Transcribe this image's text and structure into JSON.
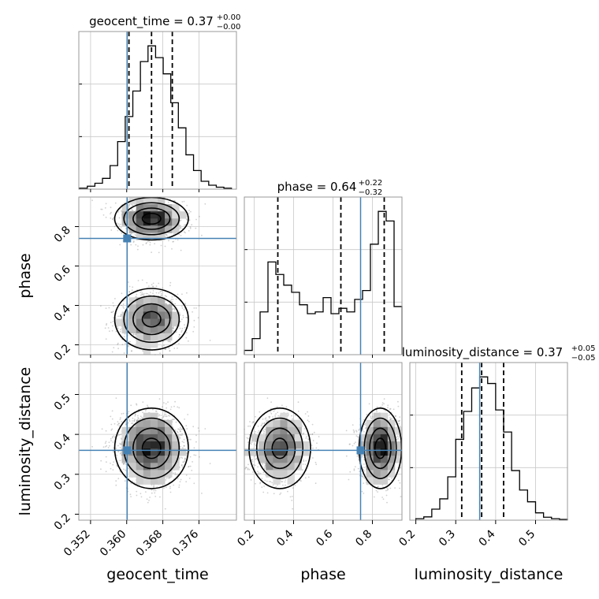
{
  "chart_data": {
    "type": "corner",
    "params": [
      "geocent_time",
      "phase",
      "luminosity_distance"
    ],
    "titles": [
      {
        "name": "geocent_time",
        "eq": " = 0.37",
        "sup": "+0.00",
        "sub": "−0.00"
      },
      {
        "name": "phase",
        "eq": " = 0.64",
        "sup": "+0.22",
        "sub": "−0.32"
      },
      {
        "name": "luminosity_distance",
        "eq": " = 0.37",
        "sup": "+0.05",
        "sub": "−0.05"
      }
    ],
    "truths": [
      0.3601,
      0.74,
      0.36
    ],
    "truth_color": "#4682b4",
    "ranges": [
      [
        0.3494,
        0.3843
      ],
      [
        0.15,
        0.95
      ],
      [
        0.185,
        0.58
      ]
    ],
    "ticks": [
      [
        "0.352",
        "0.360",
        "0.368",
        "0.376"
      ],
      [
        "0.2",
        "0.4",
        "0.6",
        "0.8"
      ],
      [
        "0.2",
        "0.3",
        "0.4",
        "0.5"
      ]
    ],
    "histograms": [
      {
        "bin_edges": [
          0.3496,
          0.35128,
          0.35296,
          0.35464,
          0.35632,
          0.358,
          0.35968,
          0.36136,
          0.36304,
          0.36472,
          0.3664,
          0.36808,
          0.36976,
          0.37144,
          0.37312,
          0.3748,
          0.37648,
          0.37816,
          0.37984,
          0.38152,
          0.3832
        ],
        "counts": [
          2,
          6,
          12,
          22,
          48,
          97,
          148,
          200,
          260,
          292,
          268,
          235,
          176,
          125,
          70,
          38,
          16,
          8,
          4,
          2
        ],
        "quantiles": [
          0.3605,
          0.3655,
          0.3701
        ]
      },
      {
        "bin_edges": [
          0.15,
          0.19,
          0.23,
          0.27,
          0.31,
          0.35,
          0.39,
          0.43,
          0.47,
          0.51,
          0.55,
          0.59,
          0.63,
          0.67,
          0.71,
          0.75,
          0.79,
          0.83,
          0.87,
          0.91,
          0.95
        ],
        "counts": [
          12,
          45,
          120,
          260,
          225,
          195,
          175,
          140,
          115,
          120,
          160,
          115,
          130,
          120,
          155,
          180,
          310,
          402,
          375,
          135
        ],
        "quantiles": [
          0.32,
          0.64,
          0.86
        ]
      },
      {
        "bin_edges": [
          0.2,
          0.22,
          0.24,
          0.26,
          0.28,
          0.3,
          0.32,
          0.34,
          0.36,
          0.38,
          0.4,
          0.42,
          0.44,
          0.46,
          0.48,
          0.5,
          0.52,
          0.54,
          0.56,
          0.58
        ],
        "counts": [
          4,
          9,
          30,
          58,
          118,
          220,
          296,
          360,
          390,
          372,
          300,
          240,
          135,
          82,
          50,
          20,
          8,
          4,
          2
        ],
        "quantiles": [
          0.315,
          0.365,
          0.42
        ]
      }
    ],
    "xlabels": [
      "geocent_time",
      "phase",
      "luminosity_distance"
    ],
    "ylabels": [
      "",
      "phase",
      "luminosity_distance"
    ]
  }
}
